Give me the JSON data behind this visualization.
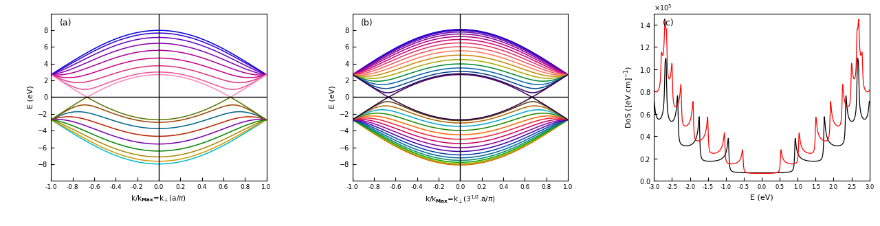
{
  "panel_a_label": "(a)",
  "panel_b_label": "(b)",
  "panel_c_label": "(c)",
  "ylim_ab": [
    -10,
    10
  ],
  "xlim_ab": [
    -1.0,
    1.0
  ],
  "xlim_c": [
    -3.0,
    3.0
  ],
  "ylim_c": [
    0,
    150000.0
  ],
  "n_armchair": 9,
  "n_zigzag": 16,
  "gamma0": 2.7,
  "background": "#ffffff",
  "cond_colors_a": [
    "#0000dd",
    "#3300cc",
    "#6600bb",
    "#8800aa",
    "#aa0099",
    "#cc0088",
    "#dd3377",
    "#ee5599",
    "#ff88bb"
  ],
  "val_colors_a": [
    "#00bbcc",
    "#cc9900",
    "#aa8800",
    "#008800",
    "#7700aa",
    "#bb2200",
    "#006688",
    "#994400",
    "#557700"
  ],
  "cond_colors_b": [
    "#0000ee",
    "#2200cc",
    "#4400bb",
    "#6600aa",
    "#880099",
    "#aa0088",
    "#cc0077",
    "#dd3366",
    "#ee5566",
    "#ff7755",
    "#cc8800",
    "#aaaa00",
    "#008833",
    "#0066aa",
    "#004488",
    "#220066",
    "#440055"
  ],
  "val_colors_b": [
    "#cc4400",
    "#cc8800",
    "#aaaa00",
    "#00aa00",
    "#008866",
    "#006699",
    "#0044aa",
    "#4400aa",
    "#880099",
    "#cc0066",
    "#ee2233",
    "#ff6600",
    "#228800",
    "#00aacc",
    "#aa6600",
    "#663300",
    "#220044"
  ],
  "yticks_ab": [
    -8,
    -6,
    -4,
    -2,
    0,
    2,
    4,
    6,
    8
  ],
  "xticks_ab": [
    -1.0,
    -0.8,
    -0.6,
    -0.4,
    -0.2,
    0.0,
    0.2,
    0.4,
    0.6,
    0.8,
    1.0
  ],
  "xticks_c": [
    -3.0,
    -2.5,
    -2.0,
    -1.5,
    -1.0,
    -0.5,
    0.0,
    0.5,
    1.0,
    1.5,
    2.0,
    2.5,
    3.0
  ],
  "yticks_c": [
    0.0,
    20000.0,
    40000.0,
    60000.0,
    80000.0,
    100000.0,
    120000.0,
    140000.0
  ],
  "dos_eta": 0.015,
  "dos_Nk": 3000,
  "arm_dos_scale": 110000.0,
  "zig_dos_scale": 145000.0
}
